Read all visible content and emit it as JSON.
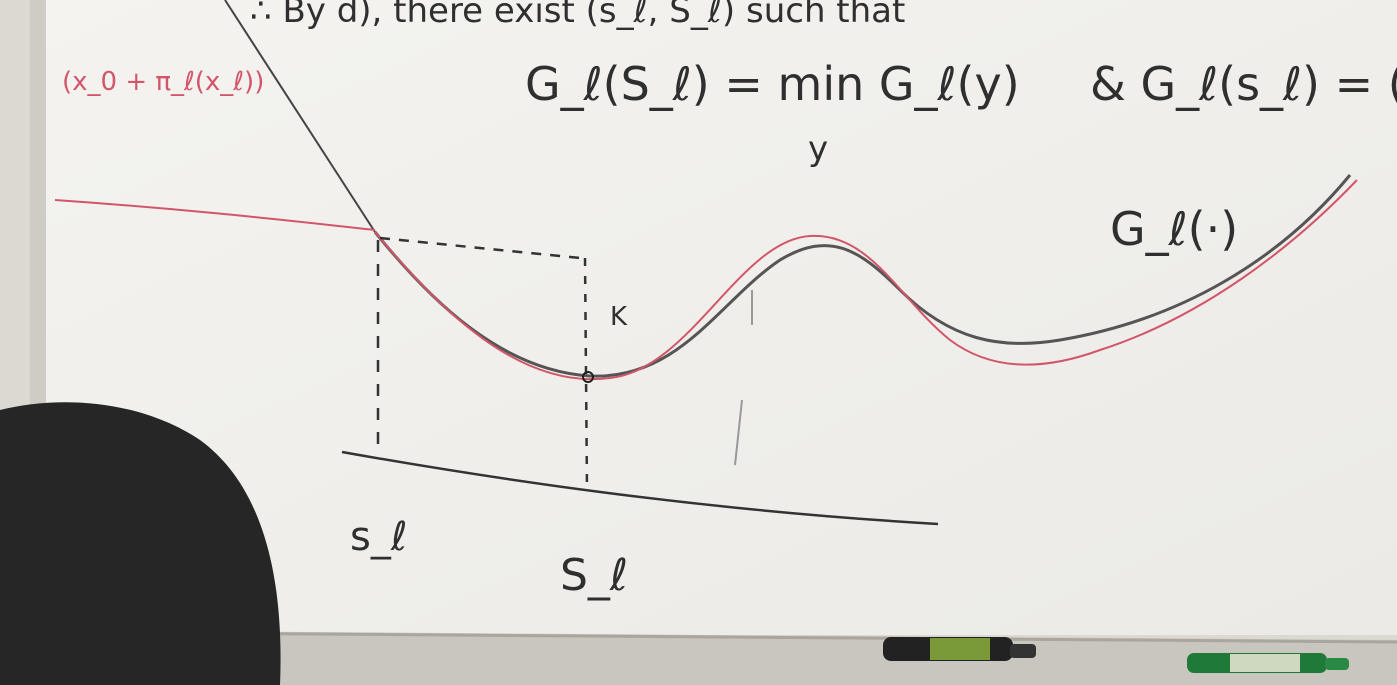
{
  "board": {
    "top_line": "∴ By d), there exist (s_ℓ, S_ℓ) such that",
    "equation_left": "G_ℓ(S_ℓ) = min G_ℓ(y)",
    "min_subscript": "y",
    "equation_right": "& G_ℓ(s_ℓ) = (",
    "red_note": "(x_0 + π_ℓ(x_ℓ))",
    "curve_label": "G_ℓ(·)",
    "point_label": "K",
    "axis_labels": [
      "s_ℓ",
      "S_ℓ"
    ]
  }
}
